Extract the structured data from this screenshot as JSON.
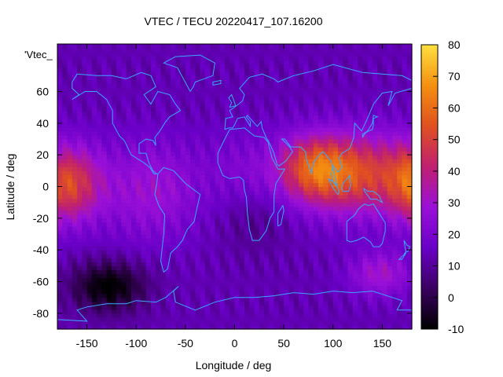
{
  "chart_data": {
    "type": "heatmap",
    "title": "VTEC / TECU 20220417_107.16200",
    "xlabel": "Longitude / deg",
    "ylabel": "Latitude / deg",
    "key_label": "'Vtec_",
    "xlim": [
      -180,
      180
    ],
    "ylim": [
      -90,
      90
    ],
    "x_ticks": [
      "-150",
      "-100",
      "-50",
      "0",
      "50",
      "100",
      "150"
    ],
    "y_ticks": [
      "60",
      "40",
      "20",
      "0",
      "-20",
      "-40",
      "-60",
      "-80"
    ],
    "colorbar": {
      "range": [
        -10,
        80
      ],
      "ticks": [
        "80",
        "70",
        "60",
        "50",
        "40",
        "30",
        "20",
        "10",
        "0",
        "-10"
      ],
      "palette": [
        "#000000",
        "#3a0060",
        "#6a00c8",
        "#9a10d8",
        "#c02070",
        "#e05020",
        "#f49010",
        "#ffe040"
      ]
    },
    "coastline_color": "#3aa8ff",
    "grid": false,
    "resolution": {
      "lon_step": 5,
      "lat_step": 2.5
    }
  }
}
